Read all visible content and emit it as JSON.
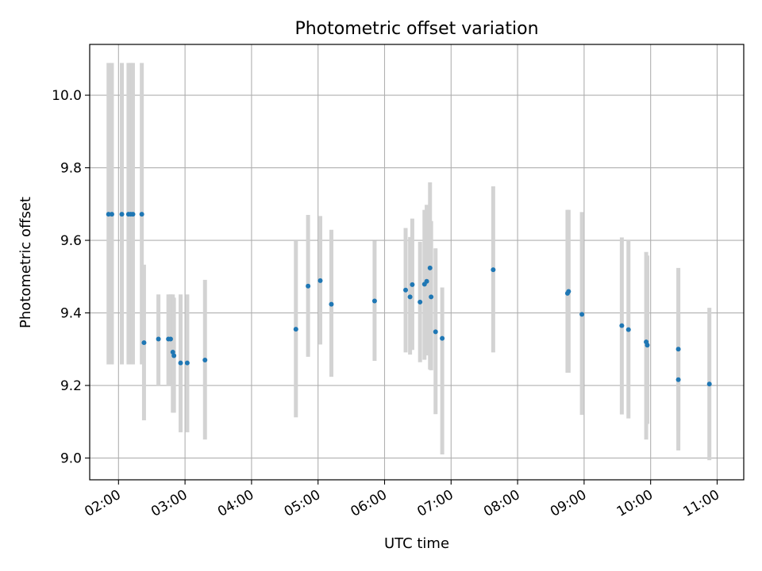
{
  "chart_data": {
    "type": "scatter",
    "title": "Photometric offset variation",
    "xlabel": "UTC time",
    "ylabel": "Photometric offset",
    "x_axis_type": "time",
    "xlim": [
      "01:34",
      "11:24"
    ],
    "ylim": [
      8.94,
      10.14
    ],
    "xticks": [
      "02:00",
      "03:00",
      "04:00",
      "05:00",
      "06:00",
      "07:00",
      "08:00",
      "09:00",
      "10:00",
      "11:00"
    ],
    "yticks": [
      "9.0",
      "9.2",
      "9.4",
      "9.6",
      "9.8",
      "10.0"
    ],
    "grid": true,
    "legend": "none",
    "colors": {
      "points": "#1f77b4",
      "errorbars": "#d3d3d3",
      "grid": "#b0b0b0"
    },
    "series": [
      {
        "x": [
          "01:51",
          "01:54",
          "02:03",
          "02:09",
          "02:11",
          "02:13",
          "02:21",
          "02:23",
          "02:36",
          "02:45",
          "02:47",
          "02:49",
          "02:50",
          "02:56",
          "03:02",
          "03:18",
          "04:40",
          "04:51",
          "05:02",
          "05:12",
          "05:51",
          "06:19",
          "06:23",
          "06:25",
          "06:32",
          "06:36",
          "06:38",
          "06:41",
          "06:42",
          "06:46",
          "06:52",
          "07:38",
          "08:45",
          "08:46",
          "08:58",
          "09:34",
          "09:40",
          "09:56",
          "09:57",
          "10:25",
          "10:25",
          "10:53"
        ],
        "y": [
          9.672,
          9.672,
          9.672,
          9.672,
          9.672,
          9.672,
          9.672,
          9.318,
          9.328,
          9.328,
          9.328,
          9.292,
          9.282,
          9.262,
          9.262,
          9.27,
          9.355,
          9.474,
          9.489,
          9.424,
          9.433,
          9.463,
          9.444,
          9.478,
          9.43,
          9.479,
          9.487,
          9.524,
          9.444,
          9.348,
          9.33,
          9.519,
          9.454,
          9.459,
          9.396,
          9.365,
          9.354,
          9.32,
          9.311,
          9.3,
          9.216,
          9.204
        ],
        "yerr_low": [
          9.258,
          9.258,
          9.258,
          9.258,
          9.258,
          9.258,
          9.258,
          9.104,
          9.198,
          9.198,
          9.198,
          9.125,
          9.125,
          9.071,
          9.071,
          9.051,
          9.112,
          9.279,
          9.313,
          9.224,
          9.268,
          9.291,
          9.285,
          9.298,
          9.264,
          9.271,
          9.283,
          9.244,
          9.242,
          9.121,
          9.01,
          9.291,
          9.235,
          9.235,
          9.119,
          9.12,
          9.109,
          9.051,
          9.094,
          9.076,
          9.021,
          8.994
        ],
        "yerr_high": [
          10.089,
          10.089,
          10.089,
          10.089,
          10.089,
          10.089,
          10.089,
          9.533,
          9.451,
          9.451,
          9.451,
          9.451,
          9.442,
          9.451,
          9.451,
          9.491,
          9.598,
          9.67,
          9.667,
          9.629,
          9.599,
          9.634,
          9.609,
          9.66,
          9.596,
          9.684,
          9.698,
          9.76,
          9.653,
          9.578,
          9.47,
          9.749,
          9.684,
          9.684,
          9.678,
          9.608,
          9.6,
          9.568,
          9.558,
          9.524,
          9.399,
          9.414
        ]
      }
    ]
  }
}
